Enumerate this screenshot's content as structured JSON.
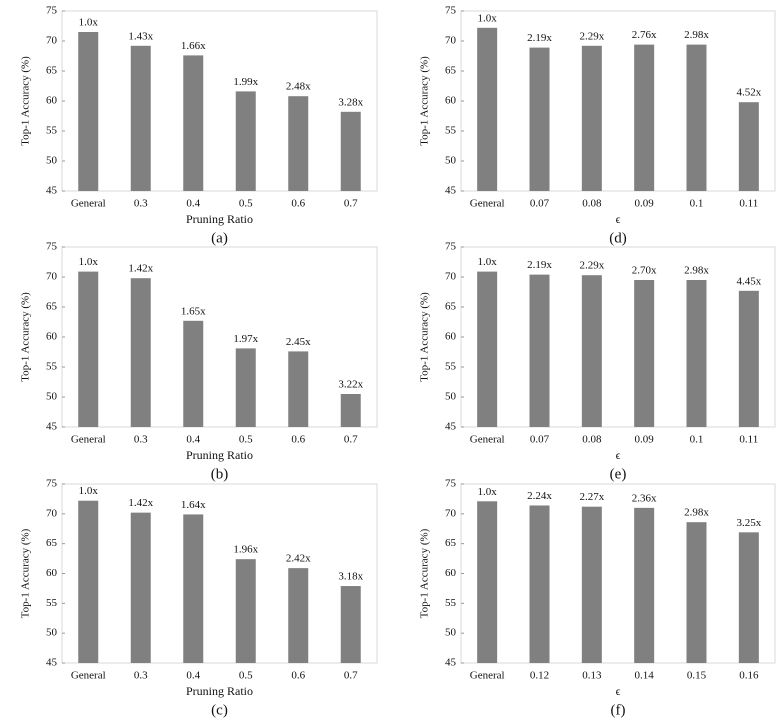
{
  "chart_data": [
    {
      "type": "bar",
      "caption": "(a)",
      "xlabel": "Pruning Ratio",
      "ylabel": "Top-1 Accuracy (%)",
      "categories": [
        "General",
        "0.3",
        "0.4",
        "0.5",
        "0.6",
        "0.7"
      ],
      "values": [
        71.5,
        69.2,
        67.6,
        61.6,
        60.8,
        58.2
      ],
      "bar_labels": [
        "1.0x",
        "1.43x",
        "1.66x",
        "1.99x",
        "2.48x",
        "3.28x"
      ],
      "color": "#808080",
      "ylim": [
        45,
        75
      ],
      "yticks": [
        45,
        50,
        55,
        60,
        65,
        70,
        75
      ]
    },
    {
      "type": "bar",
      "caption": "(d)",
      "xlabel": "ϵ",
      "ylabel": "Top-1 Accuracy (%)",
      "categories": [
        "General",
        "0.07",
        "0.08",
        "0.09",
        "0.1",
        "0.11"
      ],
      "values": [
        72.2,
        68.9,
        69.2,
        69.4,
        69.4,
        59.8
      ],
      "bar_labels": [
        "1.0x",
        "2.19x",
        "2.29x",
        "2.76x",
        "2.98x",
        "4.52x"
      ],
      "color": "#808080",
      "ylim": [
        45,
        75
      ],
      "yticks": [
        45,
        50,
        55,
        60,
        65,
        70,
        75
      ]
    },
    {
      "type": "bar",
      "caption": "(b)",
      "xlabel": "Pruning Ratio",
      "ylabel": "Top-1 Accuracy (%)",
      "categories": [
        "General",
        "0.3",
        "0.4",
        "0.5",
        "0.6",
        "0.7"
      ],
      "values": [
        70.9,
        69.8,
        62.7,
        58.1,
        57.6,
        50.5
      ],
      "bar_labels": [
        "1.0x",
        "1.42x",
        "1.65x",
        "1.97x",
        "2.45x",
        "3.22x"
      ],
      "color": "#808080",
      "ylim": [
        45,
        75
      ],
      "yticks": [
        45,
        50,
        55,
        60,
        65,
        70,
        75
      ]
    },
    {
      "type": "bar",
      "caption": "(e)",
      "xlabel": "ϵ",
      "ylabel": "Top-1 Accuracy (%)",
      "categories": [
        "General",
        "0.07",
        "0.08",
        "0.09",
        "0.1",
        "0.11"
      ],
      "values": [
        70.9,
        70.4,
        70.3,
        69.5,
        69.5,
        67.7
      ],
      "bar_labels": [
        "1.0x",
        "2.19x",
        "2.29x",
        "2.70x",
        "2.98x",
        "4.45x"
      ],
      "color": "#808080",
      "ylim": [
        45,
        75
      ],
      "yticks": [
        45,
        50,
        55,
        60,
        65,
        70,
        75
      ]
    },
    {
      "type": "bar",
      "caption": "(c)",
      "xlabel": "Pruning Ratio",
      "ylabel": "Top-1 Accuracy (%)",
      "categories": [
        "General",
        "0.3",
        "0.4",
        "0.5",
        "0.6",
        "0.7"
      ],
      "values": [
        72.2,
        70.2,
        69.9,
        62.4,
        60.9,
        57.9
      ],
      "bar_labels": [
        "1.0x",
        "1.42x",
        "1.64x",
        "1.96x",
        "2.42x",
        "3.18x"
      ],
      "color": "#808080",
      "ylim": [
        45,
        75
      ],
      "yticks": [
        45,
        50,
        55,
        60,
        65,
        70,
        75
      ]
    },
    {
      "type": "bar",
      "caption": "(f)",
      "xlabel": "ϵ",
      "ylabel": "Top-1 Accuracy (%)",
      "categories": [
        "General",
        "0.12",
        "0.13",
        "0.14",
        "0.15",
        "0.16"
      ],
      "values": [
        72.1,
        71.4,
        71.2,
        71.0,
        68.6,
        66.9
      ],
      "bar_labels": [
        "1.0x",
        "2.24x",
        "2.27x",
        "2.36x",
        "2.98x",
        "3.25x"
      ],
      "color": "#808080",
      "ylim": [
        45,
        75
      ],
      "yticks": [
        45,
        50,
        55,
        60,
        65,
        70,
        75
      ]
    }
  ]
}
